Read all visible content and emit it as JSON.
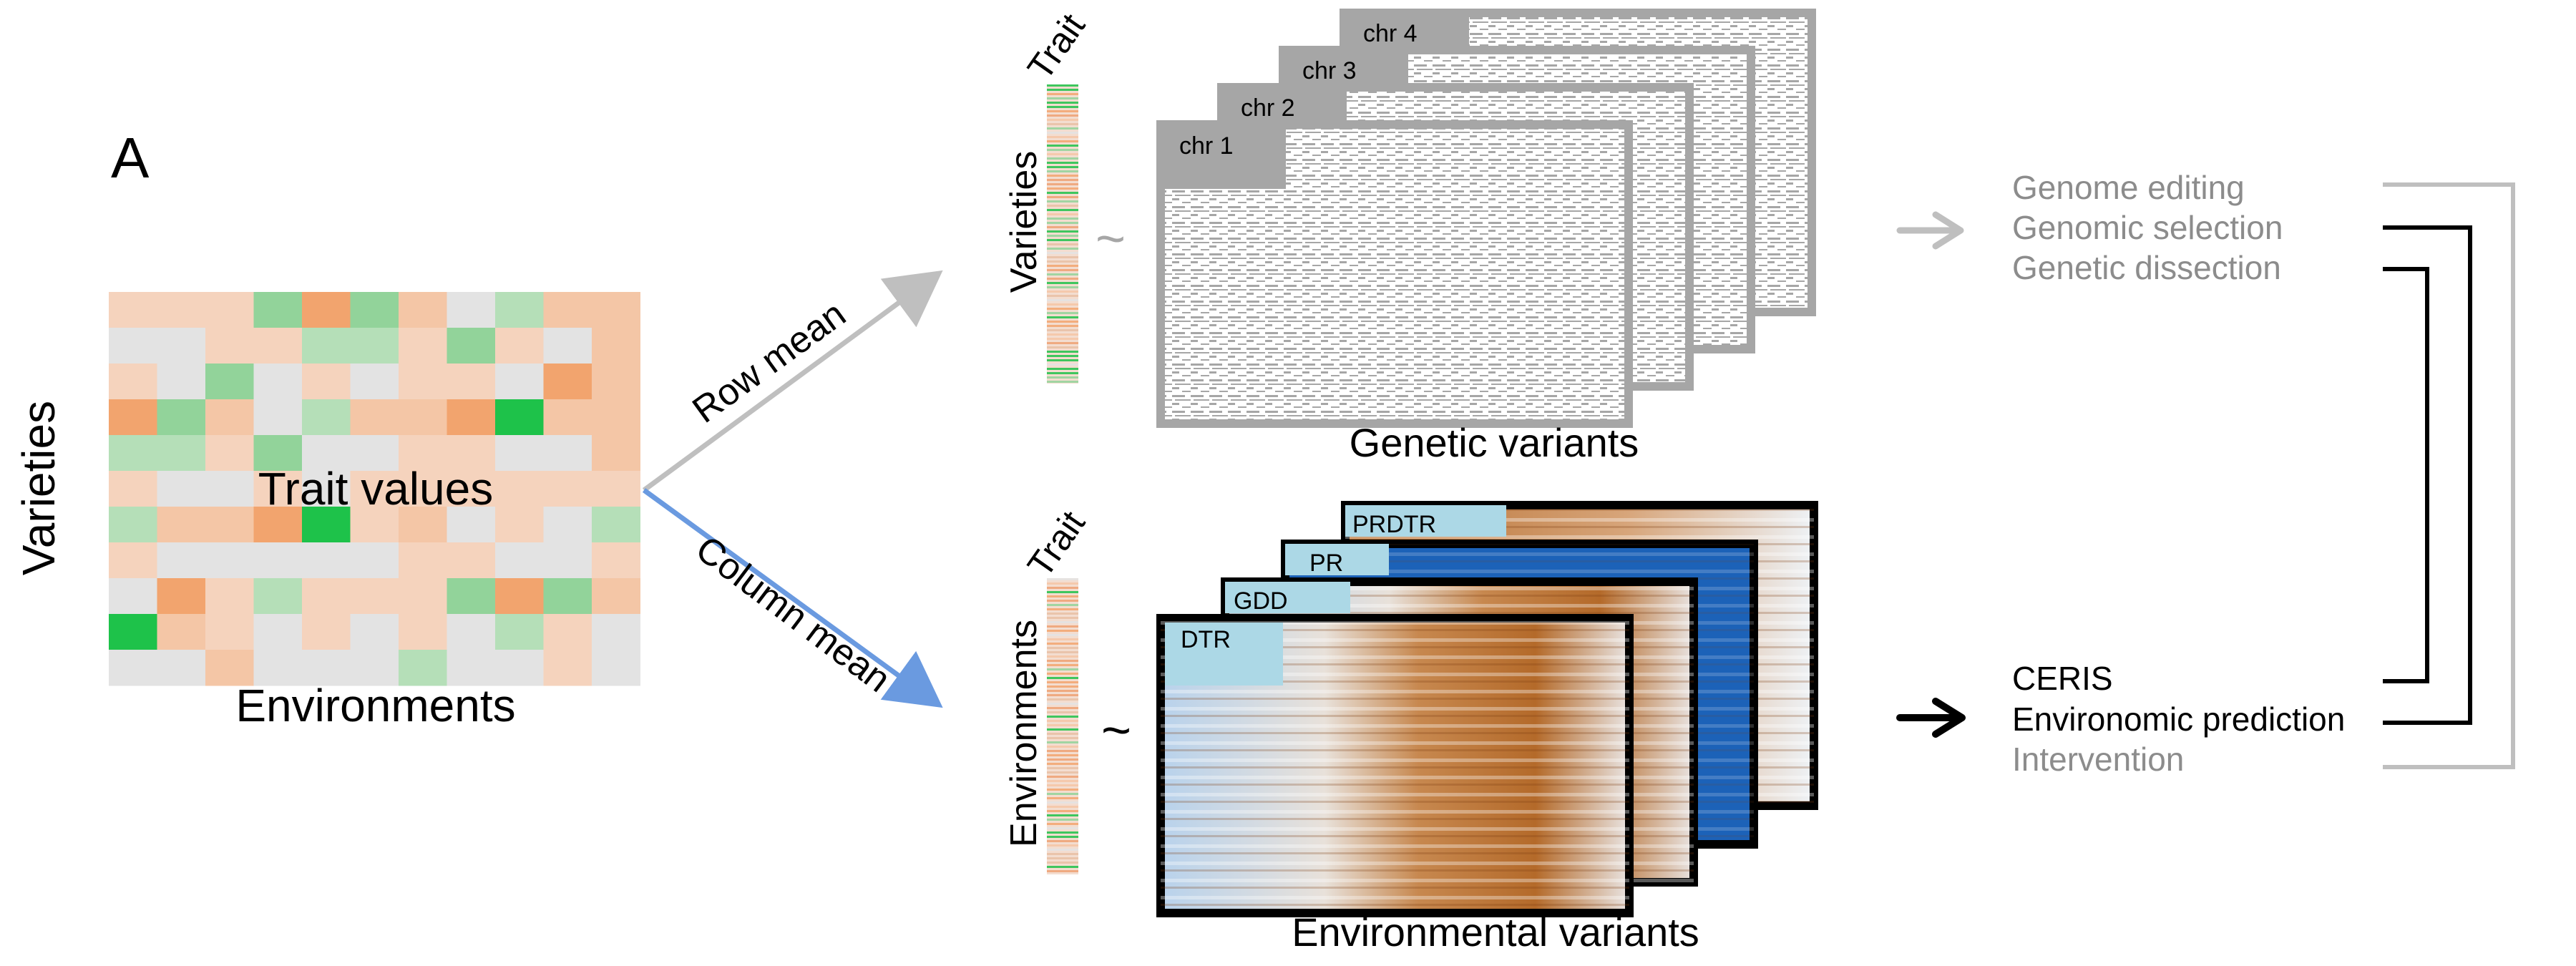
{
  "panel_label": "A",
  "matrix": {
    "row_axis_label": "Varieties",
    "col_axis_label": "Environments",
    "center_label": "Trait values",
    "cells": [
      [
        "peach-light",
        "peach-light",
        "peach-light",
        "green-mid",
        "orange",
        "green-mid",
        "peach",
        "grey",
        "green-light",
        "peach",
        "peach"
      ],
      [
        "grey",
        "grey",
        "peach-light",
        "peach-light",
        "green-light",
        "green-light",
        "peach-light",
        "green-mid",
        "peach-light",
        "grey",
        "peach"
      ],
      [
        "peach-light",
        "grey",
        "green-mid",
        "grey",
        "peach-light",
        "grey",
        "peach-light",
        "peach-light",
        "grey",
        "orange",
        "peach"
      ],
      [
        "orange",
        "green-mid",
        "peach",
        "grey",
        "green-light",
        "peach",
        "peach",
        "orange",
        "green-bright",
        "peach",
        "peach"
      ],
      [
        "green-light",
        "green-light",
        "peach-light",
        "green-mid",
        "grey",
        "grey",
        "peach-light",
        "peach-light",
        "grey",
        "grey",
        "peach"
      ],
      [
        "peach-light",
        "grey",
        "grey",
        "peach-light",
        "grey",
        "peach-light",
        "peach-light",
        "peach-light",
        "peach-light",
        "peach-light",
        "peach-light"
      ],
      [
        "green-light",
        "peach",
        "peach",
        "orange",
        "green-bright",
        "peach-light",
        "peach",
        "grey",
        "peach-light",
        "grey",
        "green-light"
      ],
      [
        "peach-light",
        "grey",
        "grey",
        "grey",
        "grey",
        "grey",
        "peach-light",
        "peach-light",
        "grey",
        "grey",
        "peach-light"
      ],
      [
        "grey",
        "orange",
        "peach-light",
        "green-light",
        "peach-light",
        "peach-light",
        "peach-light",
        "green-mid",
        "orange",
        "green-mid",
        "peach"
      ],
      [
        "green-bright",
        "peach",
        "peach-light",
        "grey",
        "peach-light",
        "grey",
        "peach-light",
        "grey",
        "green-light",
        "peach-light",
        "grey"
      ],
      [
        "grey",
        "grey",
        "peach",
        "grey",
        "grey",
        "grey",
        "green-light",
        "grey",
        "grey",
        "peach-light",
        "grey"
      ]
    ]
  },
  "arrows": {
    "row_mean": "Row mean",
    "column_mean": "Column mean"
  },
  "genetic": {
    "trait_label": "Trait",
    "axis_label": "Varieties",
    "tilde": "~",
    "variants_label": "Genetic variants",
    "chromosomes": [
      "chr 1",
      "chr 2",
      "chr 3",
      "chr 4"
    ]
  },
  "environmental": {
    "trait_label": "Trait",
    "axis_label": "Environments",
    "tilde": "~",
    "variants_label": "Environmental variants",
    "layers": [
      "DTR",
      "GDD",
      "PR",
      "PRDTR"
    ]
  },
  "applications_genetic": [
    "Genome editing",
    "Genomic selection",
    "Genetic dissection"
  ],
  "applications_env": [
    "CERIS",
    "Environomic prediction",
    "Intervention"
  ],
  "colors": {
    "grey_frame": "#a6a6a6",
    "grey_arrow": "#bfbfbf",
    "blue_arrow": "#6a9ae0",
    "black": "#000000",
    "light_blue_label": "#acd8e6",
    "peach": "#f4c6a6",
    "orange": "#f2a46e",
    "green": "#92d39a",
    "green_bright": "#1ec24a",
    "grey_cell": "#e3e3e3",
    "brown": "#b5651d",
    "blue_env": "#1c62b8",
    "text_grey": "#8c8c8c"
  }
}
